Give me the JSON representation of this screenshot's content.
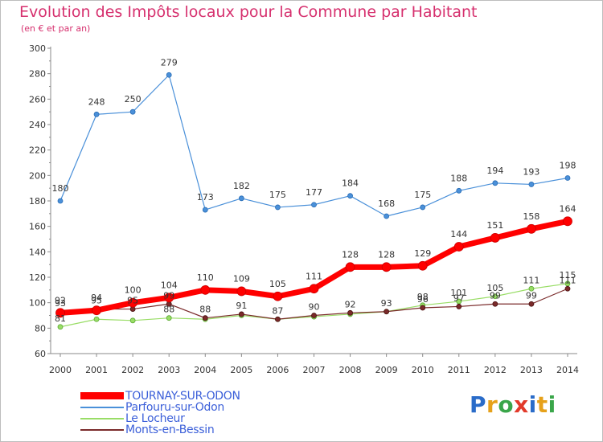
{
  "header": {
    "title": "Evolution des Impôts locaux pour la Commune par Habitant",
    "subtitle": "(en € et par an)"
  },
  "logo": {
    "letters": [
      "P",
      "r",
      "o",
      "x",
      "i",
      "t",
      "i"
    ],
    "colors": [
      "#2a6cc9",
      "#e6a11a",
      "#3aa64a",
      "#e23a2a",
      "#2a6cc9",
      "#e6a11a",
      "#3aa64a"
    ]
  },
  "chart_data": {
    "type": "line",
    "title": "Evolution des Impôts locaux pour la Commune par Habitant",
    "subtitle": "(en € et par an)",
    "x": [
      "2000",
      "2001",
      "2002",
      "2003",
      "2004",
      "2005",
      "2006",
      "2007",
      "2008",
      "2009",
      "2010",
      "2011",
      "2012",
      "2013",
      "2014"
    ],
    "ylim": [
      60,
      300
    ],
    "yticks": [
      "60",
      "80",
      "100",
      "120",
      "140",
      "160",
      "180",
      "200",
      "220",
      "240",
      "260",
      "280",
      "300"
    ],
    "grid": false,
    "legend_placement": "bottom-left",
    "series": [
      {
        "name": "TOURNAY-SUR-ODON",
        "color": "#ff0000",
        "values": [
          92,
          94,
          100,
          104,
          110,
          109,
          105,
          111,
          128,
          128,
          129,
          144,
          151,
          158,
          164
        ],
        "labels": [
          "92",
          "94",
          "100",
          "104",
          "110",
          "109",
          "105",
          "111",
          "128",
          "128",
          "129",
          "144",
          "151",
          "158",
          "164"
        ]
      },
      {
        "name": "Parfouru-sur-Odon",
        "color": "#4a90d9",
        "values": [
          180,
          248,
          250,
          279,
          173,
          182,
          175,
          177,
          184,
          168,
          175,
          188,
          194,
          193,
          198
        ],
        "labels": [
          "180",
          "248",
          "250",
          "279",
          "173",
          "182",
          "175",
          "177",
          "184",
          "168",
          "175",
          "188",
          "194",
          "193",
          "198"
        ]
      },
      {
        "name": "Le Locheur",
        "color": "#99dd66",
        "values": [
          81,
          87,
          86,
          88,
          87,
          90,
          87,
          89,
          91,
          93,
          98,
          101,
          105,
          111,
          115
        ],
        "labels": [
          "81",
          "",
          "",
          "88",
          "",
          "",
          "",
          "",
          "",
          "",
          "98",
          "101",
          "105",
          "111",
          "115"
        ]
      },
      {
        "name": "Monts-en-Bessin",
        "color": "#7a2a2a",
        "values": [
          93,
          95,
          95,
          99,
          88,
          91,
          87,
          90,
          92,
          93,
          96,
          97,
          99,
          99,
          111
        ],
        "labels": [
          "93",
          "95",
          "95",
          "99",
          "88",
          "91",
          "87",
          "90",
          "92",
          "93",
          "96",
          "97",
          "99",
          "99",
          "111"
        ]
      }
    ]
  }
}
